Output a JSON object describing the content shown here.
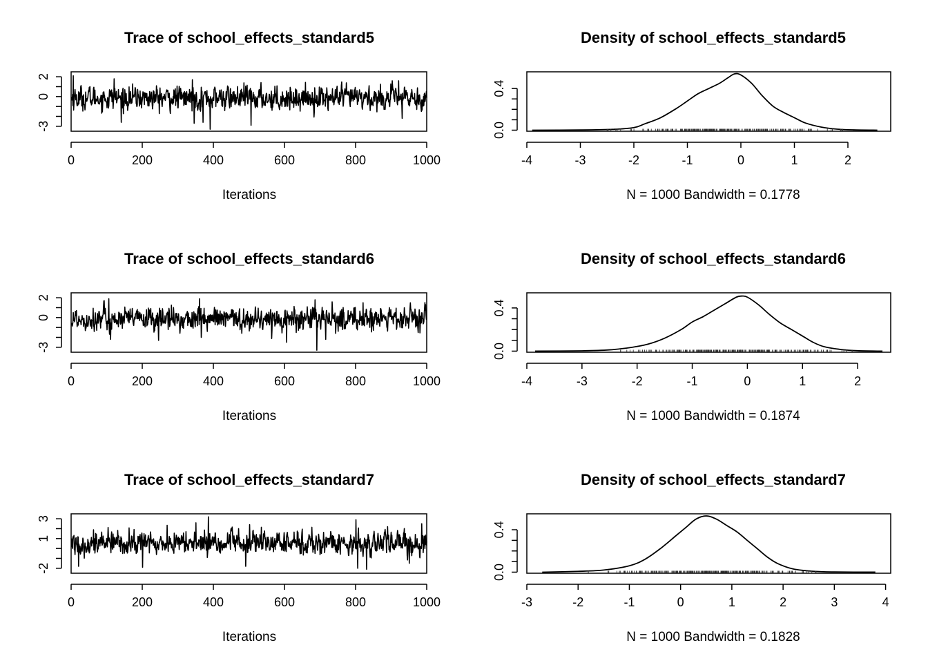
{
  "chart_data": [
    {
      "id": "trace5",
      "type": "line",
      "title": "Trace of school_effects_standard5",
      "xlabel": "Iterations",
      "ylabel": "",
      "xlim": [
        0,
        1000
      ],
      "ylim": [
        -3.5,
        2.5
      ],
      "x_ticks": [
        0,
        200,
        400,
        600,
        800,
        1000
      ],
      "y_ticks": [
        -3,
        0,
        2
      ],
      "n_iterations": 1000,
      "center": -0.15,
      "spread": 0.55,
      "spikes": [
        [
          5,
          2.1
        ],
        [
          120,
          1.8
        ],
        [
          140,
          -2.6
        ],
        [
          340,
          1.7
        ],
        [
          345,
          -2.7
        ],
        [
          370,
          -2.6
        ],
        [
          390,
          -3.3
        ],
        [
          505,
          -2.9
        ],
        [
          920,
          1.6
        ],
        [
          930,
          -2.2
        ]
      ]
    },
    {
      "id": "density5",
      "type": "line",
      "title": "Density of school_effects_standard5",
      "xlabel": "N = 1000   Bandwidth = 0.1778",
      "ylabel": "",
      "xlim": [
        -4.0,
        2.8
      ],
      "ylim": [
        -0.01,
        0.56
      ],
      "x_ticks": [
        -4,
        -3,
        -2,
        -1,
        0,
        1,
        2
      ],
      "y_ticks": [
        0.0,
        0.4
      ],
      "x": [
        -3.9,
        -3.0,
        -2.4,
        -2.0,
        -1.8,
        -1.5,
        -1.2,
        -1.0,
        -0.8,
        -0.6,
        -0.4,
        -0.25,
        -0.12,
        0.0,
        0.2,
        0.4,
        0.6,
        0.8,
        1.0,
        1.2,
        1.5,
        1.8,
        2.1,
        2.55
      ],
      "y": [
        0.0,
        0.002,
        0.008,
        0.025,
        0.06,
        0.12,
        0.21,
        0.28,
        0.35,
        0.4,
        0.45,
        0.5,
        0.54,
        0.53,
        0.45,
        0.33,
        0.23,
        0.17,
        0.12,
        0.07,
        0.03,
        0.01,
        0.003,
        0.0
      ],
      "rug_range": [
        -2.5,
        1.9
      ]
    },
    {
      "id": "trace6",
      "type": "line",
      "title": "Trace of school_effects_standard6",
      "xlabel": "Iterations",
      "ylabel": "",
      "xlim": [
        0,
        1000
      ],
      "ylim": [
        -3.5,
        2.5
      ],
      "x_ticks": [
        0,
        200,
        400,
        600,
        800,
        1000
      ],
      "y_ticks": [
        -3,
        0,
        2
      ],
      "n_iterations": 1000,
      "center": -0.15,
      "spread": 0.55,
      "spikes": [
        [
          105,
          1.9
        ],
        [
          110,
          -2.2
        ],
        [
          245,
          -2.3
        ],
        [
          360,
          1.9
        ],
        [
          365,
          -2.0
        ],
        [
          605,
          -2.5
        ],
        [
          685,
          1.8
        ],
        [
          690,
          -3.3
        ],
        [
          715,
          -2.2
        ],
        [
          820,
          1.5
        ]
      ]
    },
    {
      "id": "density6",
      "type": "line",
      "title": "Density of school_effects_standard6",
      "xlabel": "N = 1000   Bandwidth = 0.1874",
      "ylabel": "",
      "xlim": [
        -4.0,
        2.6
      ],
      "ylim": [
        -0.01,
        0.54
      ],
      "x": [
        -3.85,
        -3.0,
        -2.5,
        -2.1,
        -1.8,
        -1.5,
        -1.2,
        -1.0,
        -0.8,
        -0.6,
        -0.4,
        -0.2,
        -0.1,
        0.0,
        0.2,
        0.4,
        0.6,
        0.8,
        1.0,
        1.2,
        1.4,
        1.7,
        2.0,
        2.45
      ],
      "y": [
        0.0,
        0.003,
        0.012,
        0.035,
        0.065,
        0.12,
        0.2,
        0.27,
        0.32,
        0.38,
        0.44,
        0.5,
        0.51,
        0.5,
        0.43,
        0.34,
        0.26,
        0.2,
        0.14,
        0.08,
        0.04,
        0.015,
        0.004,
        0.0
      ],
      "x_ticks": [
        -4,
        -3,
        -2,
        -1,
        0,
        1,
        2
      ],
      "y_ticks": [
        0.0,
        0.4
      ],
      "rug_range": [
        -2.3,
        1.9
      ]
    },
    {
      "id": "trace7",
      "type": "line",
      "title": "Trace of school_effects_standard7",
      "xlabel": "Iterations",
      "ylabel": "",
      "xlim": [
        0,
        1000
      ],
      "ylim": [
        -2.5,
        3.5
      ],
      "x_ticks": [
        0,
        200,
        400,
        600,
        800,
        1000
      ],
      "y_ticks": [
        -2,
        1,
        3
      ],
      "n_iterations": 1000,
      "center": 0.55,
      "spread": 0.55,
      "spikes": [
        [
          20,
          -1.8
        ],
        [
          200,
          -1.9
        ],
        [
          350,
          2.6
        ],
        [
          385,
          3.2
        ],
        [
          490,
          -1.8
        ],
        [
          800,
          2.9
        ],
        [
          805,
          -2.0
        ],
        [
          830,
          -2.1
        ],
        [
          950,
          -1.5
        ],
        [
          985,
          2.5
        ]
      ]
    },
    {
      "id": "density7",
      "type": "line",
      "title": "Density of school_effects_standard7",
      "xlabel": "N = 1000   Bandwidth = 0.1828",
      "ylabel": "",
      "xlim": [
        -3.0,
        4.1
      ],
      "ylim": [
        -0.01,
        0.55
      ],
      "x_ticks": [
        -3,
        -2,
        -1,
        0,
        1,
        2,
        3,
        4
      ],
      "y_ticks": [
        0.0,
        0.4
      ],
      "x": [
        -2.7,
        -2.0,
        -1.5,
        -1.0,
        -0.7,
        -0.4,
        -0.1,
        0.1,
        0.3,
        0.5,
        0.7,
        0.9,
        1.1,
        1.3,
        1.5,
        1.7,
        1.9,
        2.2,
        2.6,
        3.0,
        3.8
      ],
      "y": [
        0.0,
        0.008,
        0.02,
        0.06,
        0.12,
        0.22,
        0.34,
        0.42,
        0.5,
        0.53,
        0.5,
        0.44,
        0.38,
        0.3,
        0.22,
        0.14,
        0.08,
        0.03,
        0.008,
        0.002,
        0.0
      ],
      "rug_range": [
        -1.8,
        2.9
      ]
    }
  ]
}
